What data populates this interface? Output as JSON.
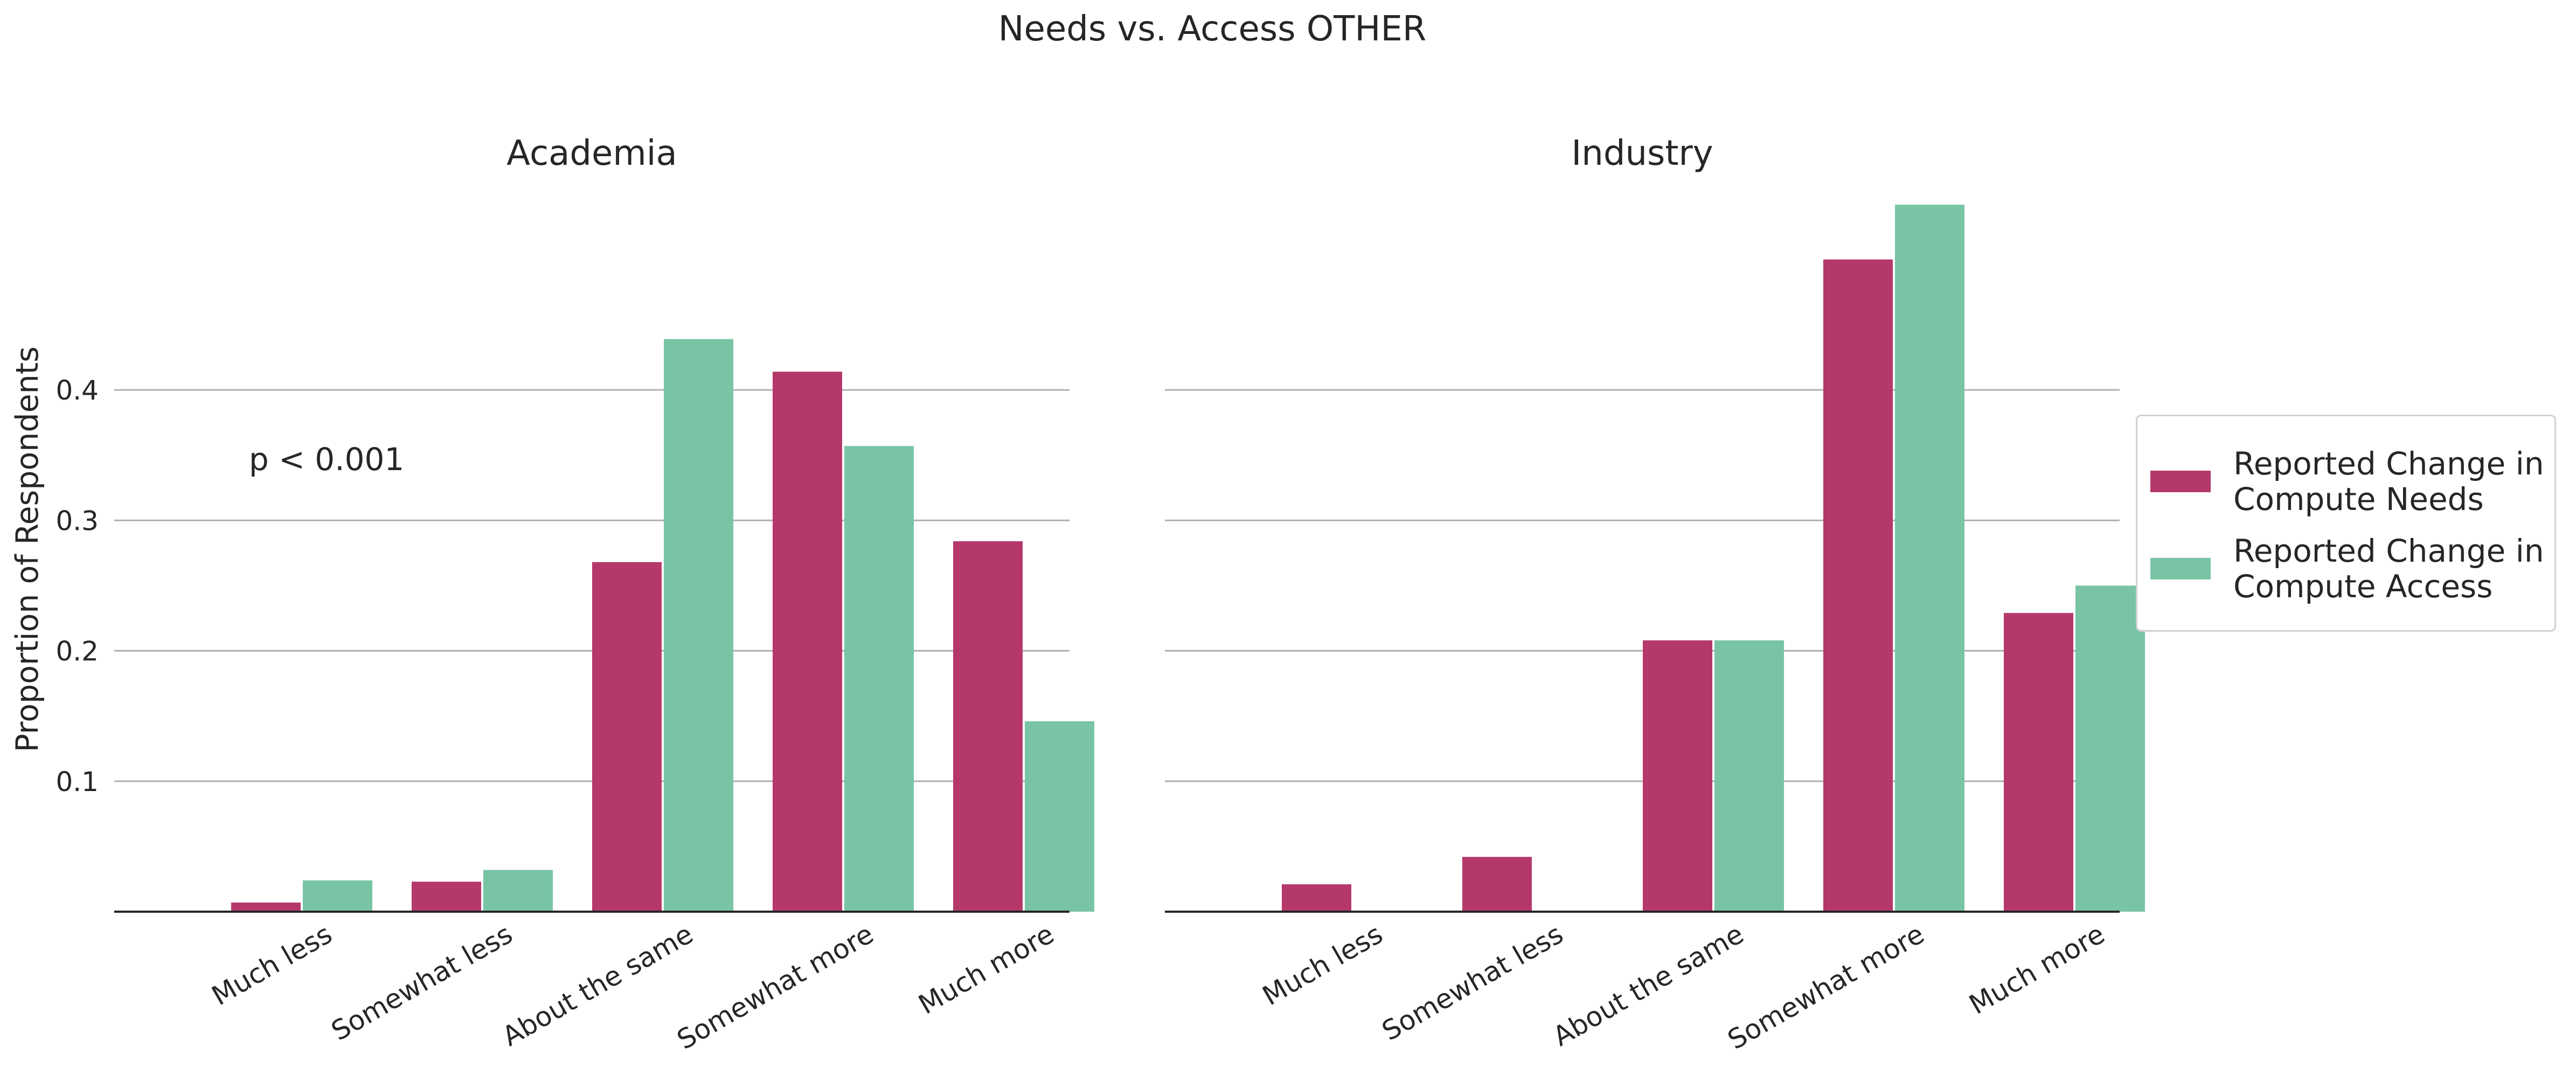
{
  "figure": {
    "suptitle": "Needs vs. Access OTHER"
  },
  "legend": {
    "items": [
      {
        "label": "Reported Change in\nCompute Needs",
        "color": "#b5386b"
      },
      {
        "label": "Reported Change in\nCompute Access",
        "color": "#79c4a5"
      }
    ]
  },
  "chart_data": [
    {
      "type": "bar",
      "title": "Academia",
      "xlabel": "",
      "ylabel": "Proportion of Respondents",
      "categories": [
        "Much less",
        "Somewhat less",
        "About the same",
        "Somewhat more",
        "Much more"
      ],
      "series": [
        {
          "name": "Reported Change in Compute Needs",
          "color": "#b5386b",
          "values": [
            0.007,
            0.023,
            0.268,
            0.414,
            0.284
          ]
        },
        {
          "name": "Reported Change in Compute Access",
          "color": "#79c4a5",
          "values": [
            0.024,
            0.032,
            0.439,
            0.357,
            0.146
          ]
        }
      ],
      "ylim": [
        0,
        0.54
      ],
      "yticks": [
        0.1,
        0.2,
        0.3,
        0.4
      ],
      "ytick_labels": [
        "0.1",
        "0.2",
        "0.3",
        "0.4"
      ],
      "grid": "horizontal",
      "annotation": "p < 0.001"
    },
    {
      "type": "bar",
      "title": "Industry",
      "xlabel": "",
      "ylabel": "",
      "categories": [
        "Much less",
        "Somewhat less",
        "About the same",
        "Somewhat more",
        "Much more"
      ],
      "series": [
        {
          "name": "Reported Change in Compute Needs",
          "color": "#b5386b",
          "values": [
            0.021,
            0.042,
            0.208,
            0.5,
            0.229
          ]
        },
        {
          "name": "Reported Change in Compute Access",
          "color": "#79c4a5",
          "values": [
            0,
            0,
            0.208,
            0.542,
            0.25
          ]
        }
      ],
      "ylim": [
        0,
        0.54
      ],
      "yticks": [
        0.1,
        0.2,
        0.3,
        0.4
      ],
      "ytick_labels": [
        "",
        "",
        "",
        ""
      ],
      "grid": "horizontal",
      "annotation": ""
    }
  ]
}
